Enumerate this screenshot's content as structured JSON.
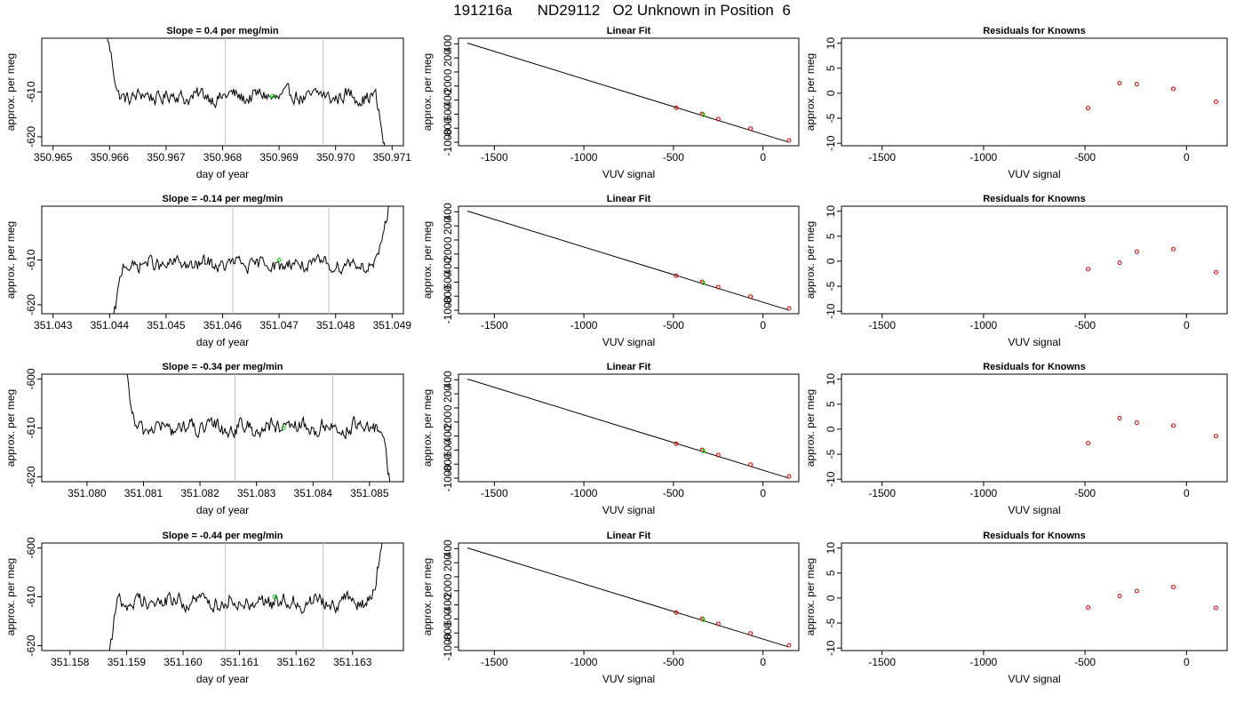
{
  "page": {
    "title": "191216a      ND29112   O2 Unknown in Position  6"
  },
  "colors": {
    "trace": "#000000",
    "marker_green": "#00cc00",
    "marker_red": "#cc0000",
    "vline": "#bebebe",
    "axis": "#000000"
  },
  "chart_data": [
    {
      "type": "line",
      "title": "Slope =  0.4  per meg/min",
      "xlabel": "day of year",
      "ylabel": "approx. per meg",
      "xlim": [
        350.9648,
        350.9712
      ],
      "ylim": [
        -622,
        -598
      ],
      "xticks": [
        350.965,
        350.966,
        350.967,
        350.968,
        350.969,
        350.97,
        350.971
      ],
      "xtick_labels": [
        "350.965",
        "350.966",
        "350.967",
        "350.968",
        "350.969",
        "350.970",
        "350.971"
      ],
      "yticks": [
        -620,
        -610
      ],
      "ytick_labels": [
        "-620",
        "-610"
      ],
      "trace": {
        "start": 350.96595,
        "end": 350.9709,
        "baseline": -611,
        "noise": 2.6
      },
      "vlines": [
        350.96805,
        350.96978
      ],
      "green_marker": {
        "x": 350.96888,
        "y": -611
      }
    },
    {
      "type": "scatter",
      "title": "Linear Fit",
      "xlabel": "VUV signal",
      "ylabel": "approx. per meg",
      "xlim": [
        -1700,
        200
      ],
      "ylim": [
        -1050,
        480
      ],
      "xticks": [
        -1500,
        -1000,
        -500,
        0
      ],
      "xtick_labels": [
        "-1500",
        "-1000",
        "-500",
        "0"
      ],
      "yticks": [
        -1000,
        -800,
        -600,
        -400,
        -200,
        0,
        200,
        400
      ],
      "ytick_labels": [
        "-1000",
        "-800",
        "-600",
        "-400",
        "-200",
        "0",
        "200",
        "400"
      ],
      "fit_line": {
        "x": [
          -1650,
          145
        ],
        "y": [
          410,
          -1000
        ]
      },
      "known_points": {
        "x": [
          -485,
          -340,
          -250,
          -70,
          145
        ],
        "y": [
          -510,
          -596,
          -670,
          -806,
          -975
        ]
      },
      "unknown_point": {
        "x": -335,
        "y": -611
      }
    },
    {
      "type": "scatter",
      "title": "Residuals for Knowns",
      "xlabel": "VUV signal",
      "ylabel": "approx. per meg",
      "xlim": [
        -1700,
        200
      ],
      "ylim": [
        -10.5,
        11
      ],
      "xticks": [
        -1500,
        -1000,
        -500,
        0
      ],
      "xtick_labels": [
        "-1500",
        "-1000",
        "-500",
        "0"
      ],
      "yticks": [
        -10,
        -5,
        0,
        5,
        10
      ],
      "ytick_labels": [
        "-10",
        "-5",
        "0",
        "5",
        "10"
      ],
      "points": {
        "x": [
          -485,
          -330,
          -245,
          -65,
          145
        ],
        "y": [
          -3.0,
          2.0,
          1.8,
          0.9,
          -1.7
        ]
      }
    },
    {
      "type": "line",
      "title": "Slope =  -0.14  per meg/min",
      "xlabel": "day of year",
      "ylabel": "approx. per meg",
      "xlim": [
        351.0428,
        351.0492
      ],
      "ylim": [
        -622,
        -598
      ],
      "xticks": [
        351.043,
        351.044,
        351.045,
        351.046,
        351.047,
        351.048,
        351.049
      ],
      "xtick_labels": [
        "351.043",
        "351.044",
        "351.045",
        "351.046",
        "351.047",
        "351.048",
        "351.049"
      ],
      "yticks": [
        -620,
        -610
      ],
      "ytick_labels": [
        "-620",
        "-610"
      ],
      "trace": {
        "start": 351.04405,
        "end": 351.04895,
        "baseline": -611,
        "noise": 2.4
      },
      "vlines": [
        351.04618,
        351.04788
      ],
      "green_marker": {
        "x": 351.047,
        "y": -610
      }
    },
    {
      "type": "scatter",
      "title": "Linear Fit",
      "xlabel": "VUV signal",
      "ylabel": "approx. per meg",
      "xlim": [
        -1700,
        200
      ],
      "ylim": [
        -1050,
        480
      ],
      "xticks": [
        -1500,
        -1000,
        -500,
        0
      ],
      "xtick_labels": [
        "-1500",
        "-1000",
        "-500",
        "0"
      ],
      "yticks": [
        -1000,
        -800,
        -600,
        -400,
        -200,
        0,
        200,
        400
      ],
      "ytick_labels": [
        "-1000",
        "-800",
        "-600",
        "-400",
        "-200",
        "0",
        "200",
        "400"
      ],
      "fit_line": {
        "x": [
          -1650,
          145
        ],
        "y": [
          410,
          -1000
        ]
      },
      "known_points": {
        "x": [
          -485,
          -340,
          -250,
          -70,
          145
        ],
        "y": [
          -510,
          -596,
          -670,
          -806,
          -975
        ]
      },
      "unknown_point": {
        "x": -335,
        "y": -611
      }
    },
    {
      "type": "scatter",
      "title": "Residuals for Knowns",
      "xlabel": "VUV signal",
      "ylabel": "approx. per meg",
      "xlim": [
        -1700,
        200
      ],
      "ylim": [
        -10.5,
        11
      ],
      "xticks": [
        -1500,
        -1000,
        -500,
        0
      ],
      "xtick_labels": [
        "-1500",
        "-1000",
        "-500",
        "0"
      ],
      "yticks": [
        -10,
        -5,
        0,
        5,
        10
      ],
      "ytick_labels": [
        "-10",
        "-5",
        "0",
        "5",
        "10"
      ],
      "points": {
        "x": [
          -485,
          -330,
          -245,
          -65,
          145
        ],
        "y": [
          -1.6,
          -0.3,
          1.9,
          2.4,
          -2.2
        ]
      }
    },
    {
      "type": "line",
      "title": "Slope =  -0.34  per meg/min",
      "xlabel": "day of year",
      "ylabel": "approx. per meg",
      "xlim": [
        351.0792,
        351.0856
      ],
      "ylim": [
        -621,
        -599
      ],
      "xticks": [
        351.08,
        351.081,
        351.082,
        351.083,
        351.084,
        351.085
      ],
      "xtick_labels": [
        "351.080",
        "351.081",
        "351.082",
        "351.083",
        "351.084",
        "351.085"
      ],
      "yticks": [
        -620,
        -610,
        -600
      ],
      "ytick_labels": [
        "-620",
        "-610",
        "-600"
      ],
      "trace": {
        "start": 351.08065,
        "end": 351.0854,
        "baseline": -610,
        "noise": 2.5
      },
      "vlines": [
        351.08262,
        351.08435
      ],
      "green_marker": {
        "x": 351.08348,
        "y": -610
      }
    },
    {
      "type": "scatter",
      "title": "Linear Fit",
      "xlabel": "VUV signal",
      "ylabel": "approx. per meg",
      "xlim": [
        -1700,
        200
      ],
      "ylim": [
        -1050,
        480
      ],
      "xticks": [
        -1500,
        -1000,
        -500,
        0
      ],
      "xtick_labels": [
        "-1500",
        "-1000",
        "-500",
        "0"
      ],
      "yticks": [
        -1000,
        -800,
        -600,
        -400,
        -200,
        0,
        200,
        400
      ],
      "ytick_labels": [
        "-1000",
        "-800",
        "-600",
        "-400",
        "-200",
        "0",
        "200",
        "400"
      ],
      "fit_line": {
        "x": [
          -1650,
          145
        ],
        "y": [
          410,
          -1000
        ]
      },
      "known_points": {
        "x": [
          -485,
          -340,
          -250,
          -70,
          145
        ],
        "y": [
          -510,
          -596,
          -670,
          -806,
          -975
        ]
      },
      "unknown_point": {
        "x": -335,
        "y": -610
      }
    },
    {
      "type": "scatter",
      "title": "Residuals for Knowns",
      "xlabel": "VUV signal",
      "ylabel": "approx. per meg",
      "xlim": [
        -1700,
        200
      ],
      "ylim": [
        -10.5,
        11
      ],
      "xticks": [
        -1500,
        -1000,
        -500,
        0
      ],
      "xtick_labels": [
        "-1500",
        "-1000",
        "-500",
        "0"
      ],
      "yticks": [
        -10,
        -5,
        0,
        5,
        10
      ],
      "ytick_labels": [
        "-10",
        "-5",
        "0",
        "5",
        "10"
      ],
      "points": {
        "x": [
          -485,
          -330,
          -245,
          -65,
          145
        ],
        "y": [
          -2.8,
          2.2,
          1.3,
          0.7,
          -1.4
        ]
      }
    },
    {
      "type": "line",
      "title": "Slope =  -0.44  per meg/min",
      "xlabel": "day of year",
      "ylabel": "approx. per meg",
      "xlim": [
        351.1575,
        351.1639
      ],
      "ylim": [
        -621,
        -599
      ],
      "xticks": [
        351.158,
        351.159,
        351.16,
        351.161,
        351.162,
        351.163
      ],
      "xtick_labels": [
        "351.158",
        "351.159",
        "351.160",
        "351.161",
        "351.162",
        "351.163"
      ],
      "yticks": [
        -620,
        -610,
        -600
      ],
      "ytick_labels": [
        "-620",
        "-610",
        "-600"
      ],
      "trace": {
        "start": 351.15865,
        "end": 351.16355,
        "baseline": -611,
        "noise": 2.5
      },
      "vlines": [
        351.16075,
        351.16248
      ],
      "green_marker": {
        "x": 351.16162,
        "y": -610
      }
    },
    {
      "type": "scatter",
      "title": "Linear Fit",
      "xlabel": "VUV signal",
      "ylabel": "approx. per meg",
      "xlim": [
        -1700,
        200
      ],
      "ylim": [
        -1050,
        480
      ],
      "xticks": [
        -1500,
        -1000,
        -500,
        0
      ],
      "xtick_labels": [
        "-1500",
        "-1000",
        "-500",
        "0"
      ],
      "yticks": [
        -1000,
        -800,
        -600,
        -400,
        -200,
        0,
        200,
        400
      ],
      "ytick_labels": [
        "-1000",
        "-800",
        "-600",
        "-400",
        "-200",
        "0",
        "200",
        "400"
      ],
      "fit_line": {
        "x": [
          -1650,
          145
        ],
        "y": [
          410,
          -1000
        ]
      },
      "known_points": {
        "x": [
          -485,
          -340,
          -250,
          -70,
          145
        ],
        "y": [
          -510,
          -596,
          -670,
          -806,
          -975
        ]
      },
      "unknown_point": {
        "x": -335,
        "y": -610
      }
    },
    {
      "type": "scatter",
      "title": "Residuals for Knowns",
      "xlabel": "VUV signal",
      "ylabel": "approx. per meg",
      "xlim": [
        -1700,
        200
      ],
      "ylim": [
        -10.5,
        11
      ],
      "xticks": [
        -1500,
        -1000,
        -500,
        0
      ],
      "xtick_labels": [
        "-1500",
        "-1000",
        "-500",
        "0"
      ],
      "yticks": [
        -10,
        -5,
        0,
        5,
        10
      ],
      "ytick_labels": [
        "-10",
        "-5",
        "0",
        "5",
        "10"
      ],
      "points": {
        "x": [
          -485,
          -330,
          -245,
          -65,
          145
        ],
        "y": [
          -1.9,
          0.4,
          1.4,
          2.2,
          -2.0
        ]
      }
    }
  ]
}
